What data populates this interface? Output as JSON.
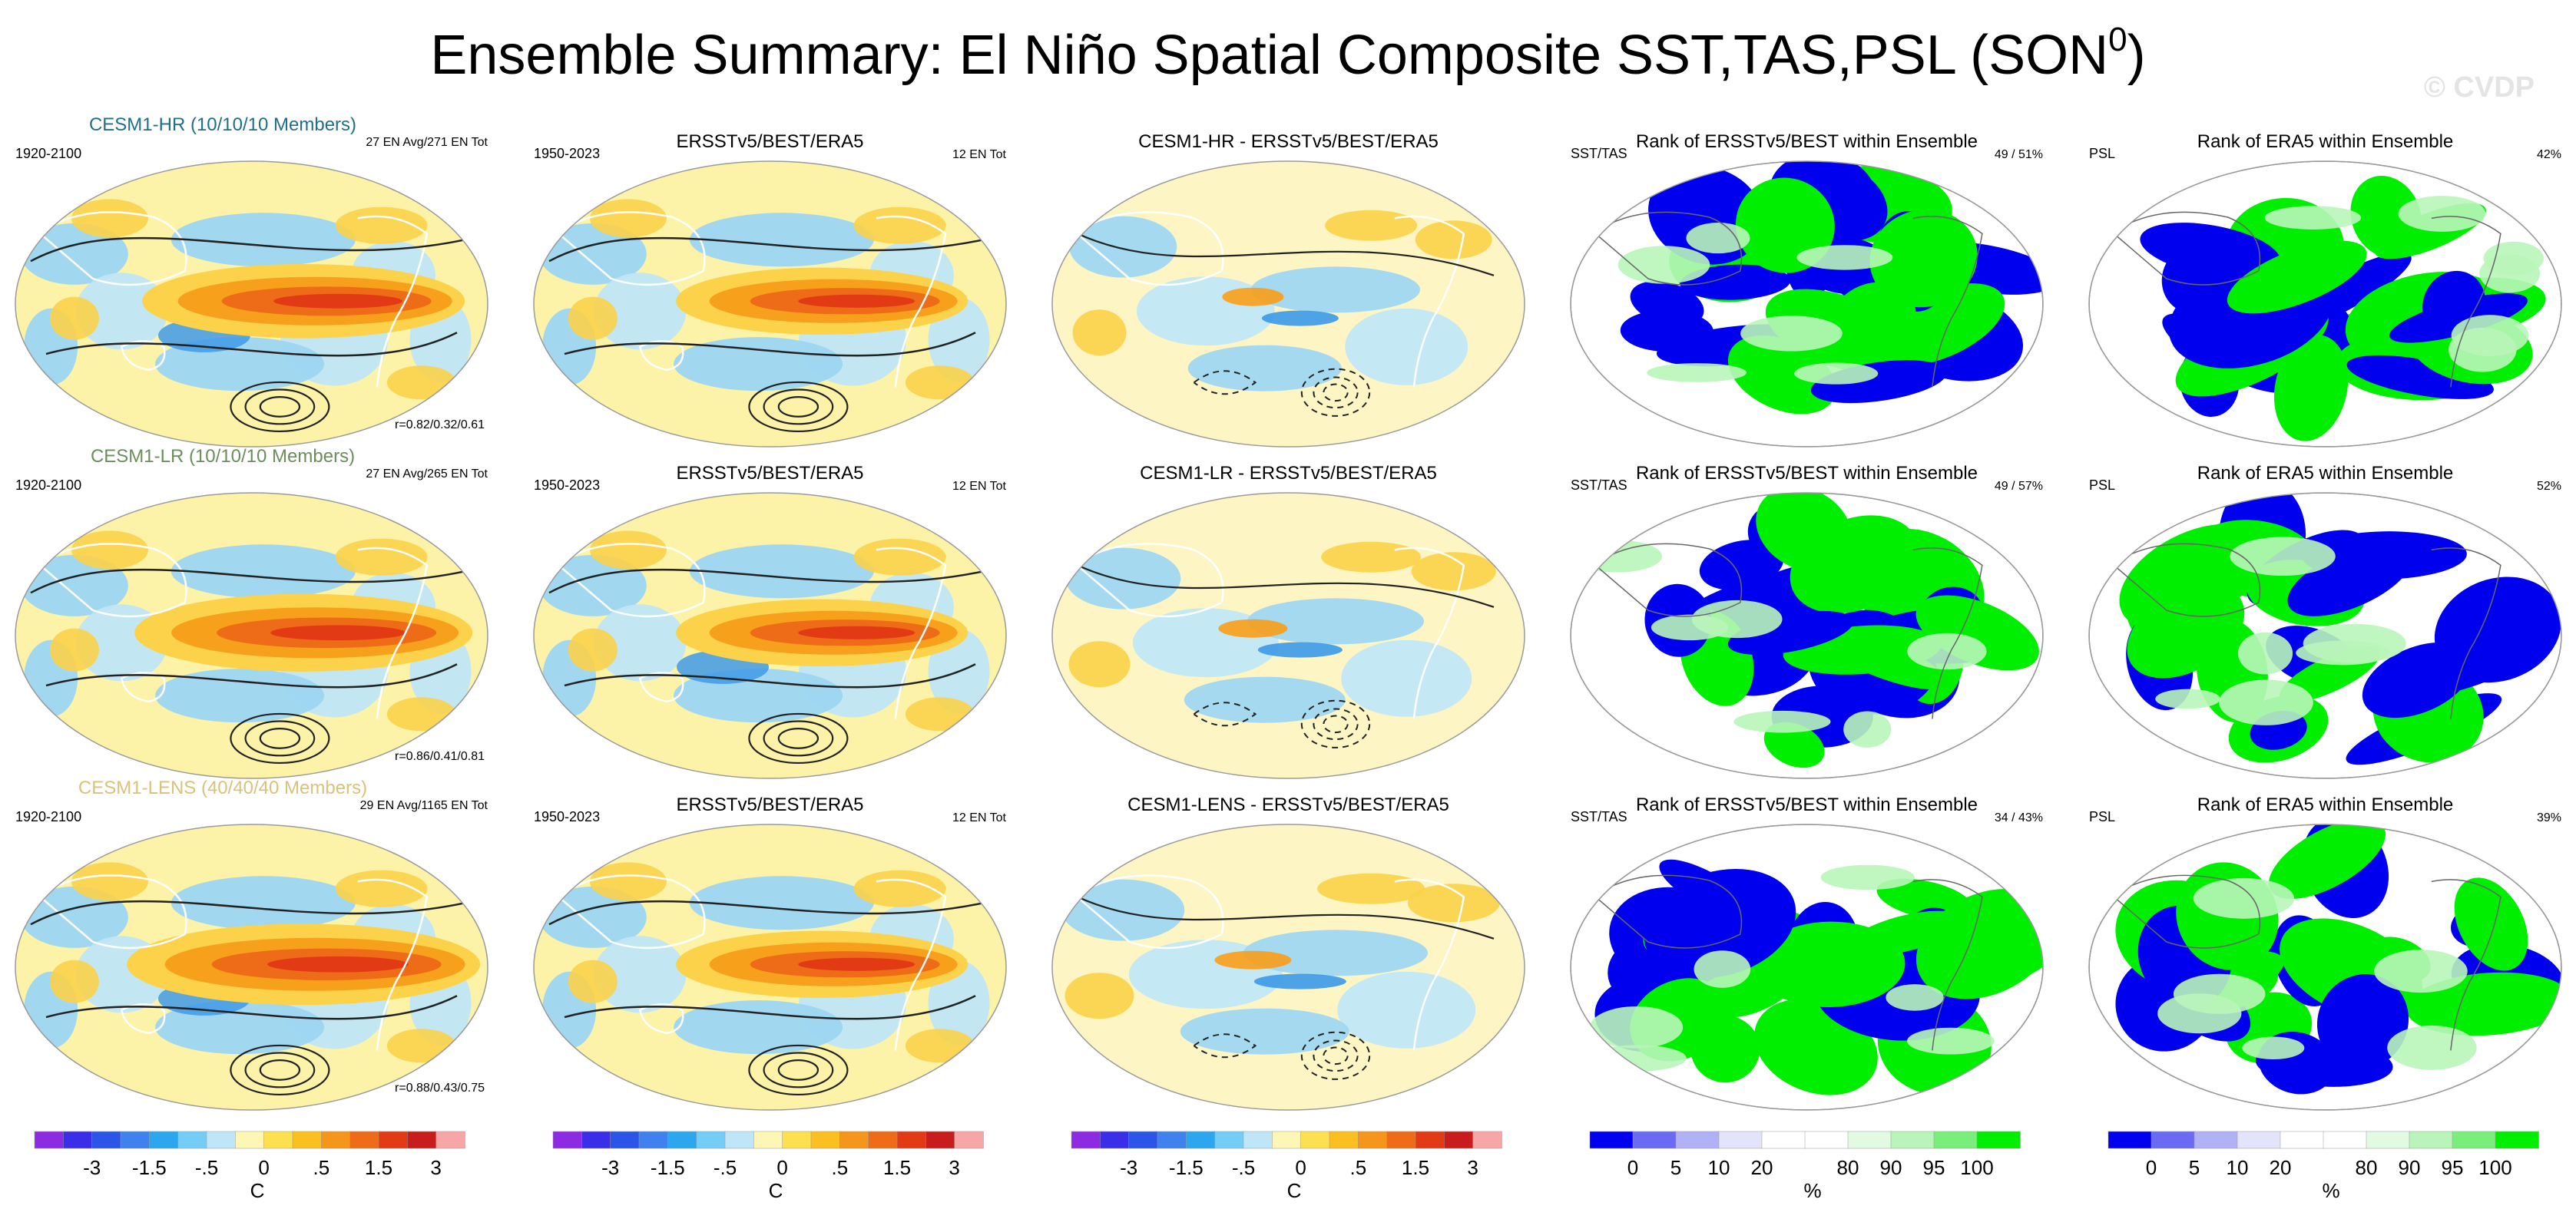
{
  "figure": {
    "title_main": "Ensemble Summary: El Niño Spatial Composite SST,TAS,PSL (SON",
    "title_sup": "0",
    "title_close": ")",
    "watermark": "© CVDP"
  },
  "chart_data": {
    "type": "map-panel-grid",
    "rows": [
      {
        "model": "CESM1-HR (10/10/10 Members)",
        "model_color": "#1f6f8b",
        "panels": [
          {
            "title": "",
            "left": "1920-2100",
            "right": "27 EN Avg/271 EN Tot",
            "bottom_right": "r=0.82/0.32/0.61",
            "kind": "sst"
          },
          {
            "title": "ERSSTv5/BEST/ERA5",
            "left": "1950-2023",
            "right": "12 EN Tot",
            "bottom_right": "",
            "kind": "sst"
          },
          {
            "title": "CESM1-HR - ERSSTv5/BEST/ERA5",
            "left": "",
            "right": "",
            "bottom_right": "",
            "kind": "diff"
          },
          {
            "title": "Rank of ERSSTv5/BEST within Ensemble",
            "left": "SST/TAS",
            "right": "49 /  51%",
            "bottom_right": "",
            "kind": "rank"
          },
          {
            "title": "Rank of ERA5 within Ensemble",
            "left": "PSL",
            "right": "42%",
            "bottom_right": "",
            "kind": "rank"
          }
        ]
      },
      {
        "model": "CESM1-LR (10/10/10 Members)",
        "model_color": "#6b8e5a",
        "panels": [
          {
            "title": "",
            "left": "1920-2100",
            "right": "27 EN Avg/265 EN Tot",
            "bottom_right": "r=0.86/0.41/0.81",
            "kind": "sst"
          },
          {
            "title": "ERSSTv5/BEST/ERA5",
            "left": "1950-2023",
            "right": "12 EN Tot",
            "bottom_right": "",
            "kind": "sst"
          },
          {
            "title": "CESM1-LR - ERSSTv5/BEST/ERA5",
            "left": "",
            "right": "",
            "bottom_right": "",
            "kind": "diff"
          },
          {
            "title": "Rank of ERSSTv5/BEST within Ensemble",
            "left": "SST/TAS",
            "right": "49 /  57%",
            "bottom_right": "",
            "kind": "rank"
          },
          {
            "title": "Rank of ERA5 within Ensemble",
            "left": "PSL",
            "right": "52%",
            "bottom_right": "",
            "kind": "rank"
          }
        ]
      },
      {
        "model": "CESM1-LENS (40/40/40 Members)",
        "model_color": "#d9c27a",
        "panels": [
          {
            "title": "",
            "left": "1920-2100",
            "right": "29 EN Avg/1165 EN Tot",
            "bottom_right": "r=0.88/0.43/0.75",
            "kind": "sst"
          },
          {
            "title": "ERSSTv5/BEST/ERA5",
            "left": "1950-2023",
            "right": "12 EN Tot",
            "bottom_right": "",
            "kind": "sst"
          },
          {
            "title": "CESM1-LENS - ERSSTv5/BEST/ERA5",
            "left": "",
            "right": "",
            "bottom_right": "",
            "kind": "diff"
          },
          {
            "title": "Rank of ERSSTv5/BEST within Ensemble",
            "left": "SST/TAS",
            "right": "34 /  43%",
            "bottom_right": "",
            "kind": "rank"
          },
          {
            "title": "Rank of ERA5 within Ensemble",
            "left": "PSL",
            "right": "39%",
            "bottom_right": "",
            "kind": "rank"
          }
        ]
      }
    ],
    "colorbars": [
      {
        "unit": "C",
        "ticks": [
          "-3",
          "-1.5",
          "-.5",
          "0",
          ".5",
          "1.5",
          "3"
        ],
        "colors": [
          "#8c2be2",
          "#3b2ee8",
          "#2b55e6",
          "#3f82ee",
          "#2aa7ee",
          "#74cdf5",
          "#bfe6f7",
          "#fdf6b5",
          "#fde04f",
          "#fbbf20",
          "#f5961b",
          "#ee6b17",
          "#e33a16",
          "#c81d1d",
          "#f7a6a6"
        ]
      },
      {
        "unit": "C",
        "ticks": [
          "-3",
          "-1.5",
          "-.5",
          "0",
          ".5",
          "1.5",
          "3"
        ],
        "colors": [
          "#8c2be2",
          "#3b2ee8",
          "#2b55e6",
          "#3f82ee",
          "#2aa7ee",
          "#74cdf5",
          "#bfe6f7",
          "#fdf6b5",
          "#fde04f",
          "#fbbf20",
          "#f5961b",
          "#ee6b17",
          "#e33a16",
          "#c81d1d",
          "#f7a6a6"
        ]
      },
      {
        "unit": "C",
        "ticks": [
          "-3",
          "-1.5",
          "-.5",
          "0",
          ".5",
          "1.5",
          "3"
        ],
        "colors": [
          "#8c2be2",
          "#3b2ee8",
          "#2b55e6",
          "#3f82ee",
          "#2aa7ee",
          "#74cdf5",
          "#bfe6f7",
          "#fdf6b5",
          "#fde04f",
          "#fbbf20",
          "#f5961b",
          "#ee6b17",
          "#e33a16",
          "#c81d1d",
          "#f7a6a6"
        ]
      },
      {
        "unit": "%",
        "ticks": [
          "0",
          "5",
          "10",
          "20",
          "80",
          "90",
          "95",
          "100"
        ],
        "colors": [
          "#0000ee",
          "#6a6af2",
          "#b1b1f5",
          "#e3e3f9",
          "#ffffff",
          "#ffffff",
          "#e1fae1",
          "#b9f5b9",
          "#7aee7a",
          "#00ee00"
        ]
      },
      {
        "unit": "%",
        "ticks": [
          "0",
          "5",
          "10",
          "20",
          "80",
          "90",
          "95",
          "100"
        ],
        "colors": [
          "#0000ee",
          "#6a6af2",
          "#b1b1f5",
          "#e3e3f9",
          "#ffffff",
          "#ffffff",
          "#e1fae1",
          "#b9f5b9",
          "#7aee7a",
          "#00ee00"
        ]
      }
    ]
  }
}
